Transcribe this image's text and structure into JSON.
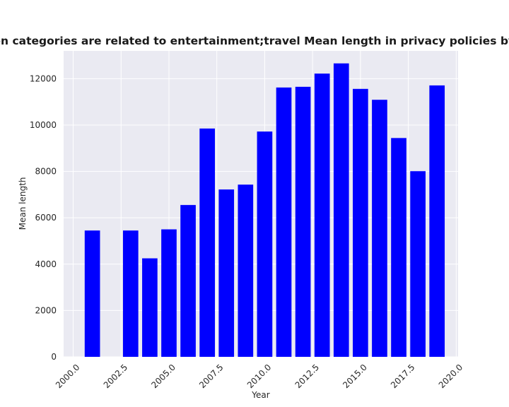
{
  "chart_data": {
    "type": "bar",
    "title": "when categories are related to entertainment;travel Mean length in privacy policies by Year",
    "xlabel": "Year",
    "ylabel": "Mean length",
    "x": [
      2001,
      2003,
      2004,
      2005,
      2006,
      2007,
      2008,
      2009,
      2010,
      2011,
      2012,
      2013,
      2014,
      2015,
      2016,
      2017,
      2018,
      2019
    ],
    "values": [
      5450,
      5450,
      4250,
      5500,
      6550,
      9850,
      7220,
      7430,
      9720,
      11620,
      11650,
      12220,
      12660,
      11560,
      11090,
      9440,
      8010,
      11710
    ],
    "xlim": [
      1999.5,
      2020.1
    ],
    "ylim": [
      0,
      13200
    ],
    "xticks": [
      "2000.0",
      "2002.5",
      "2005.0",
      "2007.5",
      "2010.0",
      "2012.5",
      "2015.0",
      "2017.5",
      "2020.0"
    ],
    "xtick_values": [
      2000,
      2002.5,
      2005,
      2007.5,
      2010,
      2012.5,
      2015,
      2017.5,
      2020
    ],
    "yticks": [
      "0",
      "2000",
      "4000",
      "6000",
      "8000",
      "10000",
      "12000"
    ],
    "ytick_values": [
      0,
      2000,
      4000,
      6000,
      8000,
      10000,
      12000
    ],
    "bar_width": 0.8,
    "grid": true,
    "colors": {
      "bar": "#0000ff",
      "plot_background": "#eaeaf2",
      "grid": "#ffffff"
    }
  }
}
